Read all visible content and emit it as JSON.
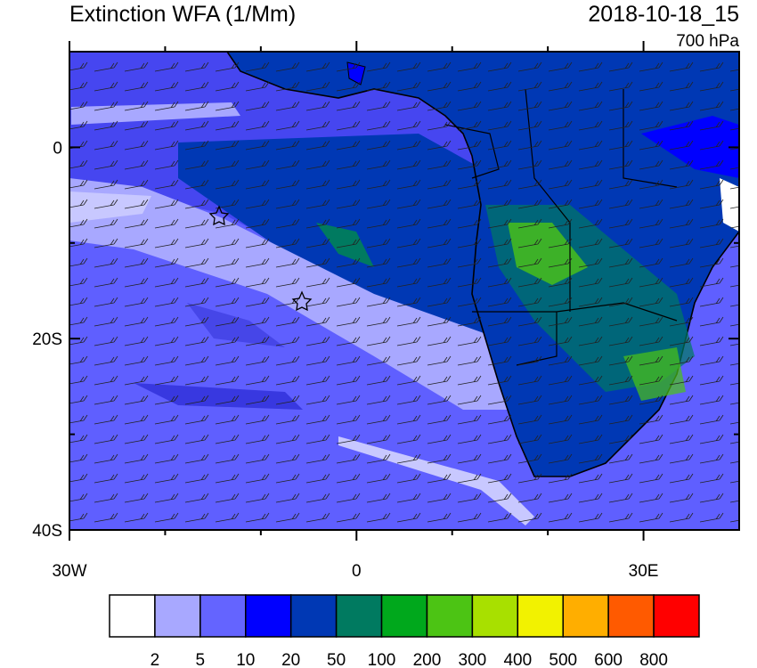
{
  "title": "Extinction WFA (1/Mm)",
  "valid_time": "2018-10-18_15",
  "level": "700 hPa",
  "map": {
    "lon_range": [
      -30,
      40
    ],
    "lat_range": [
      -40,
      10
    ],
    "lat_ticks": [
      {
        "value": 0,
        "label": "0"
      },
      {
        "value": -20,
        "label": "20S"
      },
      {
        "value": -40,
        "label": "40S"
      }
    ],
    "lon_ticks": [
      {
        "value": -30,
        "label": "30W"
      },
      {
        "value": 0,
        "label": "0"
      },
      {
        "value": 30,
        "label": "30E"
      }
    ],
    "lat_minor_ticks": [
      -30,
      -10
    ],
    "lon_minor_ticks": [
      -20,
      -10,
      10,
      20
    ]
  },
  "colorbar": {
    "levels": [
      2,
      5,
      10,
      20,
      50,
      100,
      200,
      300,
      400,
      500,
      600,
      800
    ],
    "colors": [
      "#ffffff",
      "#a8a8ff",
      "#6464ff",
      "#0000ff",
      "#0038b4",
      "#007a60",
      "#00a81c",
      "#4cc414",
      "#a8e000",
      "#f2f200",
      "#ffae00",
      "#ff5a00",
      "#ff0000"
    ]
  }
}
